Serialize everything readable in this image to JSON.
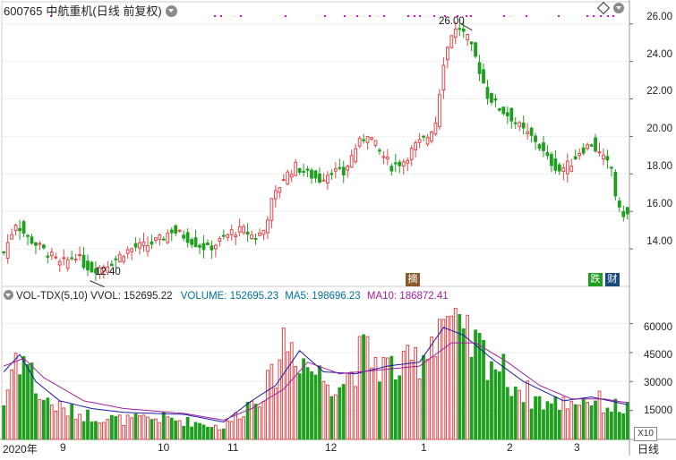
{
  "title": {
    "code": "600765",
    "name": "中航重机(日线 前复权)"
  },
  "price_axis": [
    "26.00",
    "24.00",
    "22.00",
    "20.00",
    "18.00",
    "16.00",
    "14.00"
  ],
  "volume_axis": [
    "60000",
    "45000",
    "30000",
    "15000"
  ],
  "x_axis": [
    "2020年",
    "9",
    "10",
    "11",
    "12",
    "1",
    "2",
    "3"
  ],
  "annotations": {
    "high": "26.00",
    "low": "12.40"
  },
  "badges": {
    "b1": "摘",
    "b2": "跌",
    "b3": "财"
  },
  "vol_legend": {
    "name": "VOL-TDX(5,10)",
    "vvol": "VVOL: 152695.22",
    "volume": "VOLUME: 152695.23",
    "ma5": "MA5: 198696.23",
    "ma10": "MA10: 186872.41"
  },
  "x10_label": "X10",
  "period_label": "日线",
  "colors": {
    "up": "#e0474c",
    "down": "#1f9e1f",
    "grid": "#cccccc",
    "ma5": "#1a1aa6",
    "ma10": "#a020a0",
    "vol_text": "#0070a0",
    "dots": "#e000e0"
  },
  "chart_data": {
    "type": "candlestick",
    "title": "600765 中航重机(日线 前复权)",
    "y_range": [
      12.0,
      26.8
    ],
    "volume_range": [
      0,
      70000
    ],
    "y_ticks": [
      14,
      16,
      18,
      20,
      22,
      24,
      26
    ],
    "volume_ticks": [
      15000,
      30000,
      45000,
      60000
    ],
    "high_label": 26.0,
    "low_label": 12.4,
    "grid": true,
    "keypoints": [
      [
        0,
        13.8
      ],
      [
        3,
        15.4
      ],
      [
        6,
        14.6
      ],
      [
        9,
        14.1
      ],
      [
        12,
        13.6
      ],
      [
        14,
        13.2
      ],
      [
        16,
        13.4
      ],
      [
        18,
        13.7
      ],
      [
        20,
        13.2
      ],
      [
        22,
        12.9
      ],
      [
        24,
        13.0
      ],
      [
        27,
        13.3
      ],
      [
        30,
        13.8
      ],
      [
        33,
        14.1
      ],
      [
        36,
        14.2
      ],
      [
        39,
        14.5
      ],
      [
        42,
        15.0
      ],
      [
        45,
        14.7
      ],
      [
        48,
        14.3
      ],
      [
        51,
        14.0
      ],
      [
        54,
        14.4
      ],
      [
        57,
        14.9
      ],
      [
        60,
        15.0
      ],
      [
        63,
        14.6
      ],
      [
        65,
        15.0
      ],
      [
        67,
        16.5
      ],
      [
        70,
        17.8
      ],
      [
        73,
        18.4
      ],
      [
        76,
        18.0
      ],
      [
        79,
        17.7
      ],
      [
        82,
        18.2
      ],
      [
        85,
        18.0
      ],
      [
        88,
        19.4
      ],
      [
        91,
        20.2
      ],
      [
        94,
        19.2
      ],
      [
        97,
        18.4
      ],
      [
        100,
        18.7
      ],
      [
        103,
        19.5
      ],
      [
        106,
        20.0
      ],
      [
        108,
        20.8
      ],
      [
        110,
        24.0
      ],
      [
        112,
        25.5
      ],
      [
        114,
        25.8
      ],
      [
        116,
        25.2
      ],
      [
        118,
        24.2
      ],
      [
        121,
        22.2
      ],
      [
        124,
        21.5
      ],
      [
        127,
        21.0
      ],
      [
        130,
        20.3
      ],
      [
        133,
        19.8
      ],
      [
        136,
        18.8
      ],
      [
        139,
        18.2
      ],
      [
        142,
        18.6
      ],
      [
        144,
        19.2
      ],
      [
        147,
        19.6
      ],
      [
        150,
        18.8
      ],
      [
        152,
        18.3
      ],
      [
        153,
        16.9
      ],
      [
        154,
        16.0
      ],
      [
        156,
        15.8
      ]
    ],
    "volume_keypoints": [
      [
        0,
        18000
      ],
      [
        3,
        45000
      ],
      [
        6,
        40000
      ],
      [
        9,
        22000
      ],
      [
        15,
        15000
      ],
      [
        22,
        12000
      ],
      [
        30,
        10000
      ],
      [
        40,
        11000
      ],
      [
        50,
        8000
      ],
      [
        55,
        6000
      ],
      [
        58,
        12000
      ],
      [
        63,
        22000
      ],
      [
        67,
        30000
      ],
      [
        70,
        52000
      ],
      [
        73,
        48000
      ],
      [
        76,
        38000
      ],
      [
        80,
        32000
      ],
      [
        85,
        30000
      ],
      [
        90,
        45000
      ],
      [
        95,
        38000
      ],
      [
        100,
        36000
      ],
      [
        105,
        45000
      ],
      [
        110,
        66000
      ],
      [
        114,
        52000
      ],
      [
        118,
        48000
      ],
      [
        122,
        42000
      ],
      [
        127,
        30000
      ],
      [
        132,
        22000
      ],
      [
        137,
        18000
      ],
      [
        142,
        20000
      ],
      [
        147,
        21000
      ],
      [
        152,
        17000
      ],
      [
        156,
        16000
      ]
    ],
    "ma5_keypoints": [
      [
        0,
        35000
      ],
      [
        4,
        44000
      ],
      [
        8,
        30000
      ],
      [
        14,
        20000
      ],
      [
        22,
        16000
      ],
      [
        30,
        14000
      ],
      [
        45,
        13000
      ],
      [
        55,
        9000
      ],
      [
        62,
        20000
      ],
      [
        68,
        28000
      ],
      [
        74,
        46000
      ],
      [
        80,
        35000
      ],
      [
        88,
        34000
      ],
      [
        96,
        38000
      ],
      [
        104,
        40000
      ],
      [
        110,
        58000
      ],
      [
        115,
        54000
      ],
      [
        122,
        42000
      ],
      [
        130,
        30000
      ],
      [
        140,
        20000
      ],
      [
        147,
        22000
      ],
      [
        156,
        18000
      ]
    ],
    "ma10_keypoints": [
      [
        0,
        38000
      ],
      [
        5,
        42000
      ],
      [
        10,
        32000
      ],
      [
        20,
        20000
      ],
      [
        30,
        16000
      ],
      [
        45,
        13500
      ],
      [
        55,
        10000
      ],
      [
        62,
        16000
      ],
      [
        70,
        26000
      ],
      [
        76,
        40000
      ],
      [
        84,
        34000
      ],
      [
        94,
        36000
      ],
      [
        104,
        38000
      ],
      [
        112,
        50000
      ],
      [
        118,
        50000
      ],
      [
        126,
        40000
      ],
      [
        134,
        28000
      ],
      [
        142,
        21000
      ],
      [
        150,
        21000
      ],
      [
        156,
        19000
      ]
    ]
  }
}
